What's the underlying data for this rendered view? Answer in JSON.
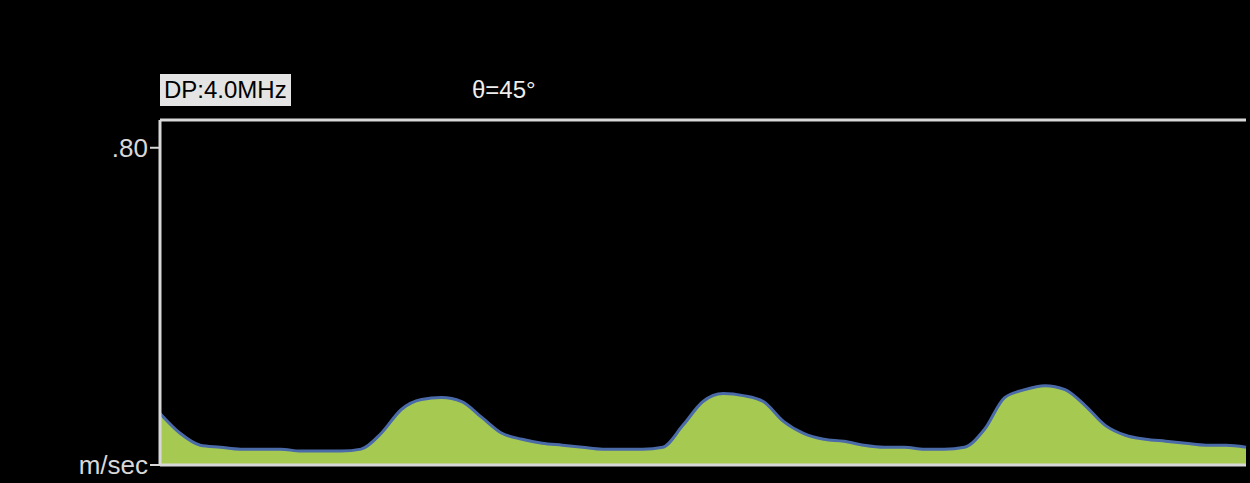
{
  "chart_data": {
    "type": "area",
    "annotations": [
      "DP:4.0MHz",
      "θ=45°"
    ],
    "values": [
      0.13,
      0.08,
      0.05,
      0.045,
      0.04,
      0.04,
      0.04,
      0.035,
      0.035,
      0.035,
      0.04,
      0.08,
      0.14,
      0.165,
      0.17,
      0.16,
      0.12,
      0.08,
      0.065,
      0.055,
      0.05,
      0.045,
      0.04,
      0.04,
      0.04,
      0.045,
      0.1,
      0.16,
      0.18,
      0.175,
      0.16,
      0.11,
      0.08,
      0.065,
      0.06,
      0.05,
      0.045,
      0.045,
      0.04,
      0.04,
      0.045,
      0.09,
      0.17,
      0.19,
      0.2,
      0.19,
      0.15,
      0.1,
      0.075,
      0.065,
      0.06,
      0.055,
      0.05,
      0.05,
      0.045
    ],
    "color": "#b8e05a",
    "ylim": [
      0,
      0.87
    ],
    "yticks": [
      {
        "value": 0,
        "label": "m/sec"
      },
      {
        "value": 0.8,
        "label": ".80"
      }
    ],
    "tick_labels": "y",
    "grid": false
  }
}
